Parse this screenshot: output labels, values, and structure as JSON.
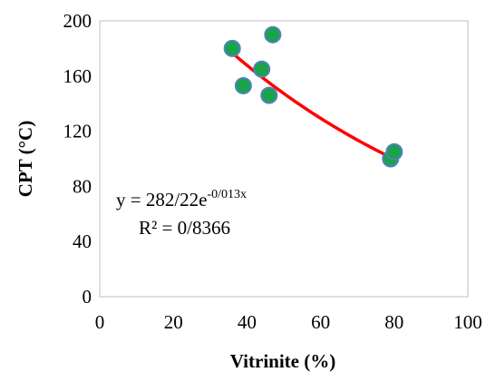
{
  "chart_data": {
    "type": "scatter",
    "xlabel": "Vitrinite (%)",
    "ylabel": "CPT (°C)",
    "xlim": [
      0,
      100
    ],
    "ylim": [
      0,
      200
    ],
    "x_ticks": [
      "0",
      "20",
      "40",
      "60",
      "80",
      "100"
    ],
    "y_ticks": [
      "0",
      "40",
      "80",
      "120",
      "160",
      "200"
    ],
    "grid": false,
    "legend": "none",
    "series": [
      {
        "points": [
          {
            "x": 36,
            "y": 180
          },
          {
            "x": 39,
            "y": 153
          },
          {
            "x": 44,
            "y": 165
          },
          {
            "x": 46,
            "y": 146
          },
          {
            "x": 47,
            "y": 190
          },
          {
            "x": 79,
            "y": 100
          },
          {
            "x": 80,
            "y": 105
          }
        ],
        "marker_color": "#1aa34a",
        "marker_edge": "#4f81bd"
      }
    ],
    "trendline": {
      "type": "exponential",
      "a": 282.22,
      "b": -0.013,
      "x_range": [
        36,
        80
      ],
      "color": "#ff0000",
      "equation_main": "y = 282/22e",
      "equation_exp": "-0/013x",
      "r_squared": "R² = 0/8366"
    }
  }
}
